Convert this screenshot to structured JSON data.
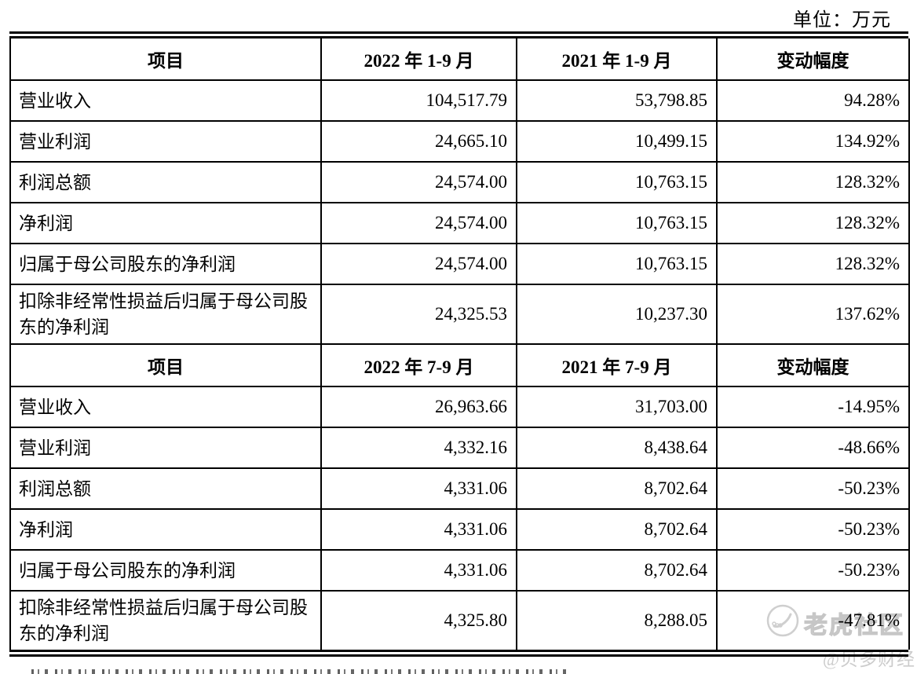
{
  "unit_label": "单位：万元",
  "table": {
    "sections": [
      {
        "header": [
          "项目",
          "2022 年 1-9 月",
          "2021 年 1-9 月",
          "变动幅度"
        ],
        "rows": [
          [
            "营业收入",
            "104,517.79",
            "53,798.85",
            "94.28%"
          ],
          [
            "营业利润",
            "24,665.10",
            "10,499.15",
            "134.92%"
          ],
          [
            "利润总额",
            "24,574.00",
            "10,763.15",
            "128.32%"
          ],
          [
            "净利润",
            "24,574.00",
            "10,763.15",
            "128.32%"
          ],
          [
            "归属于母公司股东的净利润",
            "24,574.00",
            "10,763.15",
            "128.32%"
          ],
          [
            "扣除非经常性损益后归属于母公司股东的净利润",
            "24,325.53",
            "10,237.30",
            "137.62%"
          ]
        ]
      },
      {
        "header": [
          "项目",
          "2022 年 7-9 月",
          "2021 年 7-9 月",
          "变动幅度"
        ],
        "rows": [
          [
            "营业收入",
            "26,963.66",
            "31,703.00",
            "-14.95%"
          ],
          [
            "营业利润",
            "4,332.16",
            "8,438.64",
            "-48.66%"
          ],
          [
            "利润总额",
            "4,331.06",
            "8,702.64",
            "-50.23%"
          ],
          [
            "净利润",
            "4,331.06",
            "8,702.64",
            "-50.23%"
          ],
          [
            "归属于母公司股东的净利润",
            "4,331.06",
            "8,702.64",
            "-50.23%"
          ],
          [
            "扣除非经常性损益后归属于母公司股东的净利润",
            "4,325.80",
            "8,288.05",
            "-47.81%"
          ]
        ]
      }
    ]
  },
  "watermark": {
    "community": "老虎社区",
    "handle": "@贝多财经"
  },
  "colors": {
    "text": "#000000",
    "border": "#000000",
    "background": "#ffffff",
    "watermark_gray": "#c9c9c9"
  }
}
